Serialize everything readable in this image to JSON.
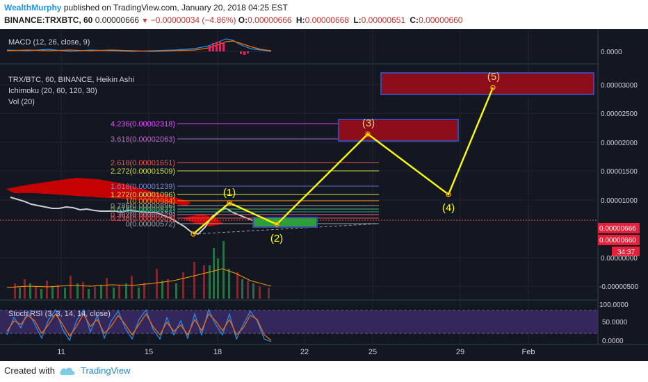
{
  "header": {
    "author": "WealthMurphy",
    "published_text": " published on TradingView.com, January 20, 2018 04:25 EST",
    "symbol": "BINANCE:TRXBTC, 60",
    "price": "0.00000666",
    "change": "−0.00000034 (−4.86%)",
    "ohlc": [
      {
        "label": "O:",
        "value": "0.00000666"
      },
      {
        "label": "H:",
        "value": "0.00000668"
      },
      {
        "label": "L:",
        "value": "0.00000651"
      },
      {
        "label": "C:",
        "value": "0.00000660"
      }
    ]
  },
  "indicators": {
    "macd": "MACD (12, 26, close, 9)",
    "main_title": "TRX/BTC, 60, BINANCE, Heikin Ashi",
    "ichimoku": "Ichimoku (20, 60, 120, 30)",
    "vol": "Vol (20)",
    "stoch": "Stoch RSI (3, 3, 14, 14, close)"
  },
  "price_axis": {
    "macd_tick": "0.0000",
    "ticks": [
      "0.00003000",
      "0.00002500",
      "0.00002000",
      "0.00001500",
      "0.00001000",
      "0.00000000",
      "-0.00000500"
    ],
    "price_tag_1": "0.00000666",
    "price_tag_2": "0.00000660",
    "countdown": "34:37",
    "stoch_ticks": [
      "100.0000",
      "50.0000",
      "0.0000"
    ]
  },
  "time_axis": [
    "11",
    "15",
    "18",
    "22",
    "25",
    "29",
    "Feb"
  ],
  "fib_levels": [
    {
      "label": "4.236(0.00002318)",
      "color": "#e040fb"
    },
    {
      "label": "4.236(0.00002318)",
      "color": "#e040fb"
    },
    {
      "label": "3.618(0.00002063)",
      "color": "#ba68c8"
    },
    {
      "label": "2.618(0.00001651)",
      "color": "#ef5350"
    },
    {
      "label": "2.272(0.00001509)",
      "color": "#cddc39"
    },
    {
      "label": "1.618(0.00001239)",
      "color": "#5c6bc0"
    },
    {
      "label": "1.272(0.00001096)",
      "color": "#d4e157"
    },
    {
      "label": "1(0.00000984)",
      "color": "#ff9800"
    },
    {
      "label": "0.786(0.00000896)",
      "color": "#9e9e9e"
    },
    {
      "label": "0.618(0.00000827)",
      "color": "#66bb6a"
    },
    {
      "label": "0.5(0.00000778)",
      "color": "#26a69a"
    },
    {
      "label": "0.382(0.00000729)",
      "color": "#f06292"
    },
    {
      "label": "0.236(0.00000669)",
      "color": "#ef5350"
    },
    {
      "label": "0(0.00000572)",
      "color": "#9e9e9e"
    }
  ],
  "waves": [
    "(1)",
    "(2)",
    "(3)",
    "(4)",
    "(5)"
  ],
  "footer": {
    "created_with": "Created with",
    "brand": "TradingView"
  },
  "colors": {
    "background": "#131722",
    "wave_line": "#ffff00",
    "target_box": "#8b0e1a",
    "target_border": "#3949ab",
    "support_box": "#2e9e3a",
    "price_tag": "#e91e38"
  }
}
